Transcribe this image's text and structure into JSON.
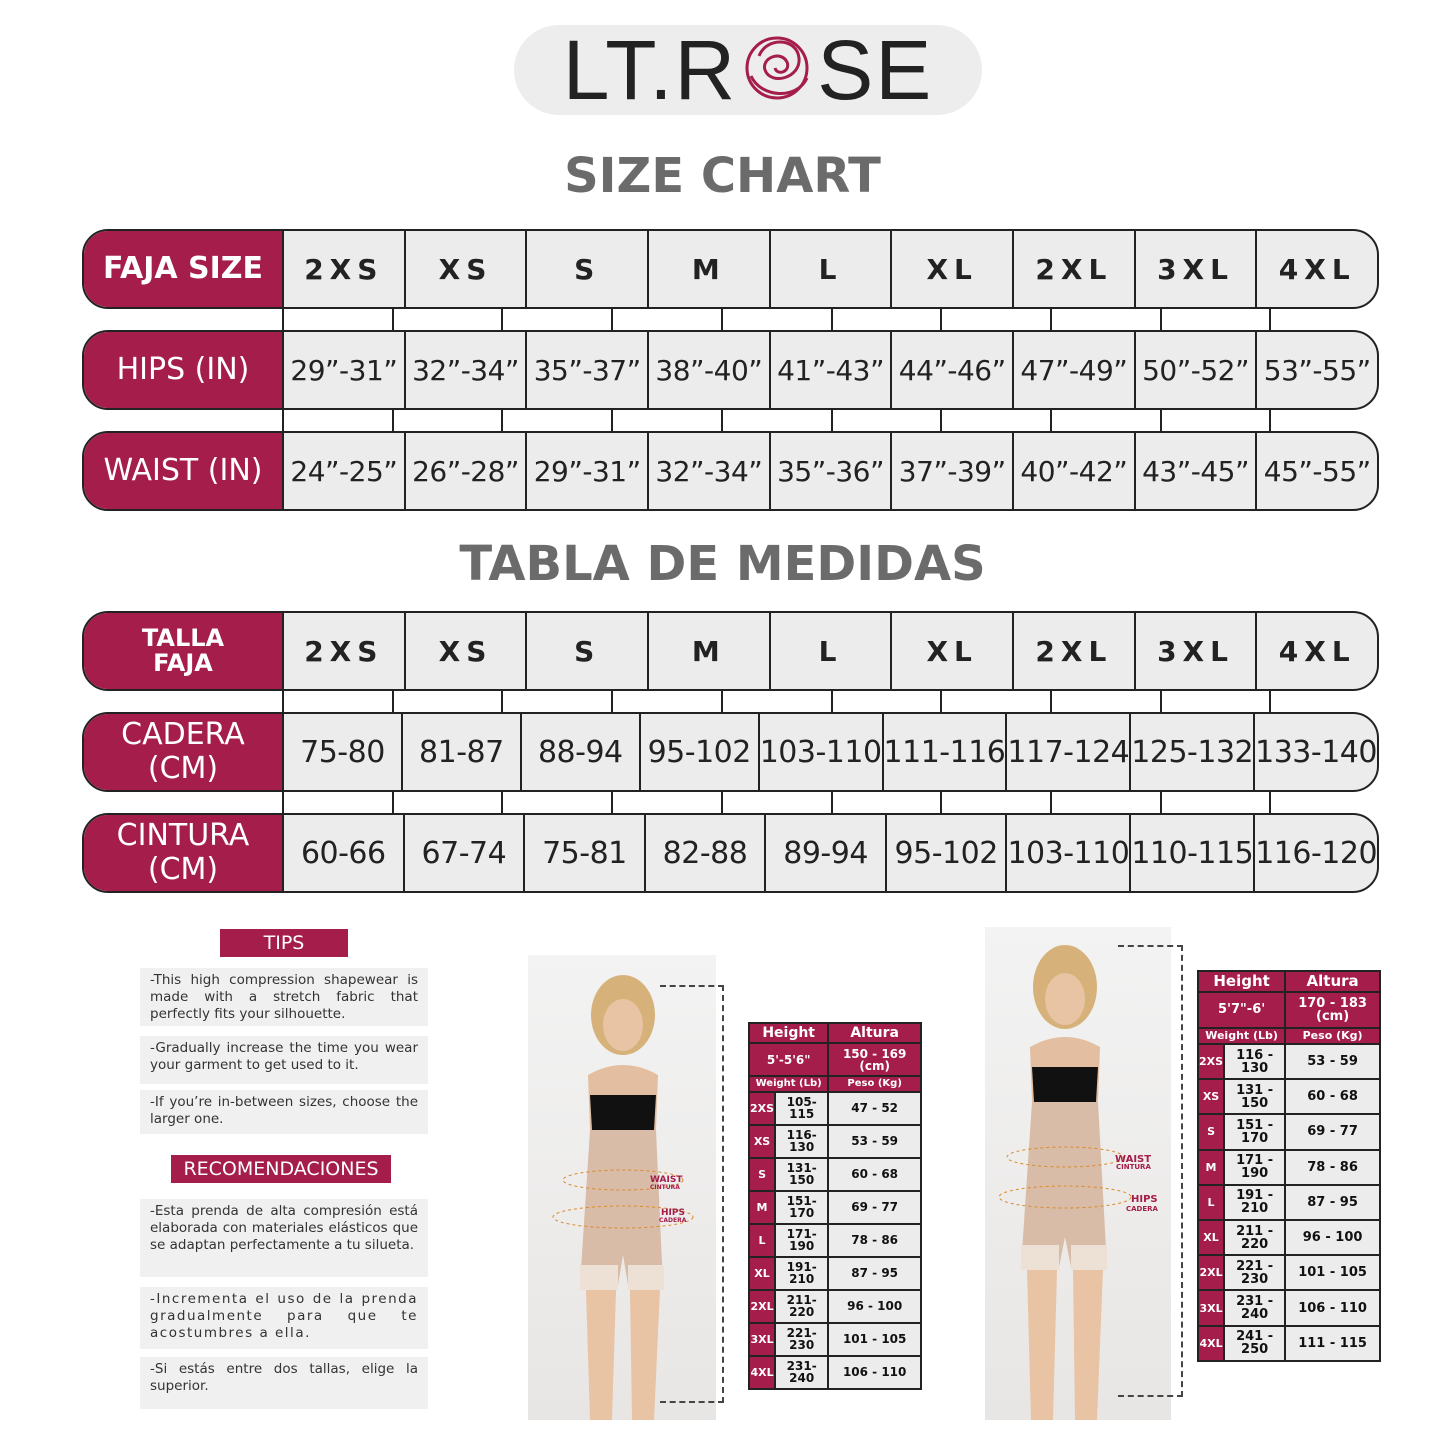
{
  "brand": {
    "logo_text_left": "LT.R",
    "logo_text_right": "SE",
    "accent": "#a51d4a"
  },
  "size_chart": {
    "title": "SIZE CHART",
    "sizes": [
      "2XS",
      "XS",
      "S",
      "M",
      "L",
      "XL",
      "2XL",
      "3XL",
      "4XL"
    ],
    "rows": [
      {
        "label": "FAJA SIZE"
      },
      {
        "label": "HIPS (IN)",
        "values": [
          "29”-31”",
          "32”-34”",
          "35”-37”",
          "38”-40”",
          "41”-43”",
          "44”-46”",
          "47”-49”",
          "50”-52”",
          "53”-55”"
        ]
      },
      {
        "label": "WAIST (IN)",
        "values": [
          "24”-25”",
          "26”-28”",
          "29”-31”",
          "32”-34”",
          "35”-36”",
          "37”-39”",
          "40”-42”",
          "43”-45”",
          "45”-55”"
        ]
      }
    ]
  },
  "tabla": {
    "title": "TABLA DE MEDIDAS",
    "rows": [
      {
        "label": "TALLA FAJA"
      },
      {
        "label": "CADERA (CM)",
        "values": [
          "75-80",
          "81-87",
          "88-94",
          "95-102",
          "103-110",
          "111-116",
          "117-124",
          "125-132",
          "133-140"
        ]
      },
      {
        "label": "CINTURA (CM)",
        "values": [
          "60-66",
          "67-74",
          "75-81",
          "82-88",
          "89-94",
          "95-102",
          "103-110",
          "110-115",
          "116-120"
        ]
      }
    ]
  },
  "tips": {
    "title": "TIPS",
    "items": [
      "-This high compression shapewear is made with a stretch fabric that perfectly fits your silhouette.",
      "-Gradually increase the time you wear your garment to get used to it.",
      "-If you’re in-between sizes, choose the larger one."
    ]
  },
  "recomendaciones": {
    "title": "RECOMENDACIONES",
    "items": [
      "-Esta prenda de alta compresión está elaborada con materiales elásticos que se adaptan perfectamente a tu silueta.",
      "-Incrementa el uso de la prenda gradualmente para que te acostumbres a ella.",
      "-Si estás entre dos tallas, elige la superior."
    ]
  },
  "photo_labels": {
    "waist": "WAIST",
    "cintura": "CINTURA",
    "hips": "HIPS",
    "cadera": "CADERA"
  },
  "weight_tables": [
    {
      "height": "Height",
      "altura": "Altura",
      "height_value": "5'-5'6\"",
      "altura_value": "150 - 169 (cm)",
      "weight": "Weight (Lb)",
      "peso": "Peso (Kg)",
      "rows": [
        [
          "2XS",
          "105-115",
          "47 - 52"
        ],
        [
          "XS",
          "116-130",
          "53 - 59"
        ],
        [
          "S",
          "131-150",
          "60 - 68"
        ],
        [
          "M",
          "151-170",
          "69 - 77"
        ],
        [
          "L",
          "171-190",
          "78 - 86"
        ],
        [
          "XL",
          "191-210",
          "87 - 95"
        ],
        [
          "2XL",
          "211-220",
          "96 - 100"
        ],
        [
          "3XL",
          "221-230",
          "101 - 105"
        ],
        [
          "4XL",
          "231-240",
          "106 - 110"
        ]
      ]
    },
    {
      "height": "Height",
      "altura": "Altura",
      "height_value": "5'7\"-6'",
      "altura_value": "170 - 183 (cm)",
      "weight": "Weight (Lb)",
      "peso": "Peso (Kg)",
      "rows": [
        [
          "2XS",
          "116 - 130",
          "53 - 59"
        ],
        [
          "XS",
          "131 - 150",
          "60 - 68"
        ],
        [
          "S",
          "151 - 170",
          "69 - 77"
        ],
        [
          "M",
          "171 - 190",
          "78 - 86"
        ],
        [
          "L",
          "191 - 210",
          "87 - 95"
        ],
        [
          "XL",
          "211 - 220",
          "96 - 100"
        ],
        [
          "2XL",
          "221 - 230",
          "101 - 105"
        ],
        [
          "3XL",
          "231 - 240",
          "106 - 110"
        ],
        [
          "4XL",
          "241 - 250",
          "111 - 115"
        ]
      ]
    }
  ]
}
